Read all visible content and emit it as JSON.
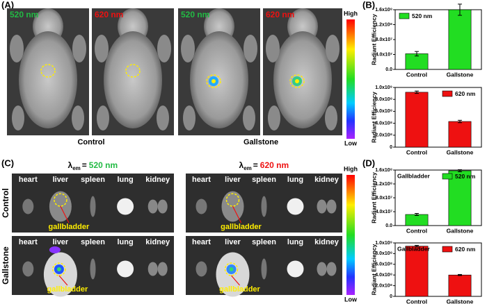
{
  "panels": {
    "a": "(A)",
    "b": "(B)",
    "c": "(C)",
    "d": "(D)"
  },
  "panel_a": {
    "wavelengths": [
      "520 nm",
      "620 nm"
    ],
    "groups": [
      "Control",
      "Gallstone"
    ]
  },
  "colorbar": {
    "high": "High",
    "low": "Low"
  },
  "panel_c": {
    "symbol": "λ",
    "subscript": "em",
    "eq": "=",
    "wavelengths": [
      "520 nm",
      "620 nm"
    ],
    "organs": [
      "heart",
      "liver",
      "spleen",
      "lung",
      "kidney"
    ],
    "rows": [
      "Control",
      "Gallstone"
    ],
    "pointer": "gallbladder"
  },
  "chart_data": [
    {
      "type": "bar",
      "y_label": "Radiant Efficiency",
      "categories": [
        "Control",
        "Gallstone"
      ],
      "legend": "upper left",
      "series": [
        {
          "name": "520 nm",
          "color": "#22dd22",
          "values": [
            42000000,
            160000000
          ],
          "errors": [
            6000000,
            15000000
          ]
        }
      ],
      "ylim": [
        0,
        160000000
      ],
      "yticks": [
        {
          "value": 0,
          "label": "0.0"
        },
        {
          "value": 40000000,
          "label": "4.0x10⁷"
        },
        {
          "value": 80000000,
          "label": "8.0x10⁷"
        },
        {
          "value": 120000000,
          "label": "1.2x10⁸"
        },
        {
          "value": 160000000,
          "label": "1.6x10⁸"
        }
      ]
    },
    {
      "type": "bar",
      "y_label": "Radiant Efficiency",
      "categories": [
        "Control",
        "Gallstone"
      ],
      "legend": "upper right",
      "series": [
        {
          "name": "620 nm",
          "color": "#ee1111",
          "values": [
            920000000,
            430000000
          ],
          "errors": [
            20000000,
            20000000
          ]
        }
      ],
      "ylim": [
        0,
        1000000000
      ],
      "yticks": [
        0,
        {
          "value": 200000000,
          "label": "2.0x10⁸"
        },
        {
          "value": 400000000,
          "label": "4.0x10⁸"
        },
        {
          "value": 600000000,
          "label": "6.0x10⁸"
        },
        {
          "value": 800000000,
          "label": "8.0x10⁸"
        },
        {
          "value": 1000000000,
          "label": "1.0x10⁹"
        }
      ]
    },
    {
      "type": "bar",
      "title": "Gallbladder",
      "y_label": "Radiant Efficiency",
      "categories": [
        "Control",
        "Gallstone"
      ],
      "legend": "upper right",
      "series": [
        {
          "name": "520 nm",
          "color": "#22dd22",
          "values": [
            32000000,
            158000000
          ],
          "errors": [
            3000000,
            3000000
          ]
        }
      ],
      "ylim": [
        0,
        160000000
      ],
      "yticks": [
        {
          "value": 0,
          "label": "0.0"
        },
        {
          "value": 40000000,
          "label": "4.0x10⁷"
        },
        {
          "value": 80000000,
          "label": "8.0x10⁷"
        },
        {
          "value": 120000000,
          "label": "1.2x10⁸"
        },
        {
          "value": 160000000,
          "label": "1.6x10⁸"
        }
      ]
    },
    {
      "type": "bar",
      "title": "Gallbladder",
      "y_label": "Radiant Efficiency",
      "categories": [
        "Control",
        "Gallstone"
      ],
      "legend": "upper right",
      "series": [
        {
          "name": "620 nm",
          "color": "#ee1111",
          "values": [
            940000000,
            400000000
          ],
          "errors": [
            15000000,
            10000000
          ]
        }
      ],
      "ylim": [
        0,
        1000000000
      ],
      "yticks": [
        0,
        {
          "value": 200000000,
          "label": "2.0x10⁸"
        },
        {
          "value": 400000000,
          "label": "4.0x10⁸"
        },
        {
          "value": 600000000,
          "label": "6.0x10⁸"
        },
        {
          "value": 800000000,
          "label": "8.0x10⁸"
        },
        {
          "value": 1000000000,
          "label": "1.0x10⁹"
        }
      ]
    }
  ]
}
